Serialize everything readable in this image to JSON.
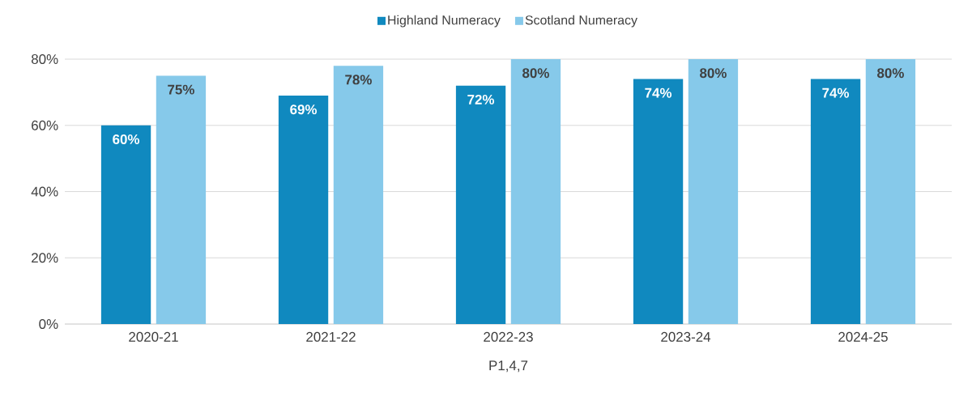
{
  "chart_data": {
    "type": "bar",
    "xlabel": "P1,4,7",
    "categories": [
      "2020-21",
      "2021-22",
      "2022-23",
      "2023-24",
      "2024-25"
    ],
    "series": [
      {
        "name": "Highland Numeracy",
        "color": "#1089bf",
        "values": [
          60,
          69,
          72,
          74,
          74
        ],
        "value_labels": [
          "60%",
          "69%",
          "72%",
          "74%",
          "74%"
        ]
      },
      {
        "name": "Scotland Numeracy",
        "color": "#86c9ea",
        "values": [
          75,
          78,
          80,
          80,
          80
        ],
        "value_labels": [
          "75%",
          "78%",
          "80%",
          "80%",
          "80%"
        ]
      }
    ],
    "ylim": [
      0,
      80
    ],
    "yticks": [
      {
        "value": 0,
        "label": "0%"
      },
      {
        "value": 20,
        "label": "20%"
      },
      {
        "value": 40,
        "label": "40%"
      },
      {
        "value": 60,
        "label": "60%"
      },
      {
        "value": 80,
        "label": "80%"
      }
    ],
    "grid": "y",
    "legend": "top"
  }
}
